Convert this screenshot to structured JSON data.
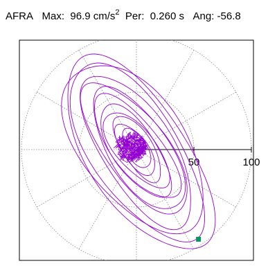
{
  "header": {
    "station": "AFRA",
    "max_label": "Max:",
    "max_value": "96.9 cm/s",
    "max_exp": "2",
    "per_label": "Per:",
    "per_value": "0.260 s",
    "ang_label": "Ang:",
    "ang_value": "-56.8"
  },
  "chart_data": {
    "type": "particle-motion-polar",
    "title": "AFRA  Max: 96.9 cm/s2  Per: 0.260 s  Ang: -56.8",
    "units": "cm/s2",
    "period_s": 0.26,
    "angle_deg": -56.8,
    "max_amplitude": 96.9,
    "radial_ticks": [
      50,
      100
    ],
    "radial_tick_labels": [
      "50",
      "100"
    ],
    "rmax": 100,
    "grid_rings": [
      50,
      100
    ],
    "grid_spokes_deg": [
      0,
      30,
      60,
      90,
      120,
      150,
      180,
      210,
      240,
      270,
      300,
      330
    ],
    "grid": true,
    "trace_color": "#9400d3",
    "marker_color": "#009966",
    "peak_point": {
      "x": 54,
      "y": -78
    },
    "orbits": [
      {
        "semi_major": 96.9,
        "semi_minor": 43,
        "angle_deg": -56.8,
        "offset": [
          2,
          -4
        ]
      },
      {
        "semi_major": 89,
        "semi_minor": 38,
        "angle_deg": -56.8,
        "offset": [
          0,
          -2
        ]
      },
      {
        "semi_major": 84,
        "semi_minor": 45,
        "angle_deg": -54.0,
        "offset": [
          -2,
          2
        ]
      },
      {
        "semi_major": 76,
        "semi_minor": 31,
        "angle_deg": -58.0,
        "offset": [
          1,
          -1
        ]
      },
      {
        "semi_major": 68,
        "semi_minor": 27,
        "angle_deg": -53.0,
        "offset": [
          -1,
          1
        ]
      },
      {
        "semi_major": 61,
        "semi_minor": 26,
        "angle_deg": -57.0,
        "offset": [
          2,
          0
        ]
      },
      {
        "semi_major": 55,
        "semi_minor": 21,
        "angle_deg": -52.0,
        "offset": [
          0,
          2
        ]
      },
      {
        "semi_major": 47,
        "semi_minor": 19,
        "angle_deg": -56.0,
        "offset": [
          -1,
          -1
        ]
      },
      {
        "semi_major": 40,
        "semi_minor": 17,
        "angle_deg": -50.0,
        "offset": [
          0,
          0
        ]
      },
      {
        "semi_major": 33,
        "semi_minor": 13,
        "angle_deg": -58.0,
        "offset": [
          1,
          1
        ]
      },
      {
        "semi_major": 26,
        "semi_minor": 11,
        "angle_deg": -55.0,
        "offset": [
          -1,
          0
        ]
      },
      {
        "semi_major": 19,
        "semi_minor": 9,
        "angle_deg": -60.0,
        "offset": [
          0,
          1
        ]
      }
    ],
    "noise_cluster": {
      "center": [
        -5,
        2
      ],
      "radius_x": 15,
      "radius_y": 14,
      "points": 700
    }
  }
}
